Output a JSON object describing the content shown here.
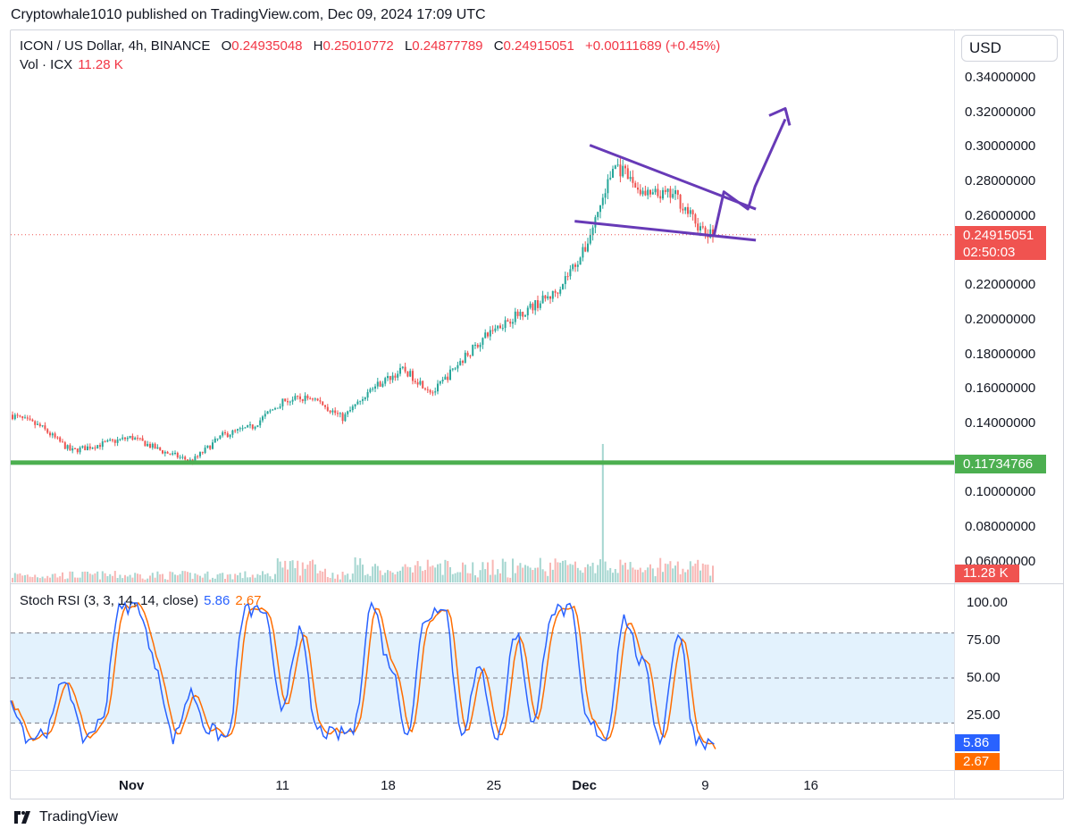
{
  "header": {
    "publisher_line": "Cryptowhale1010 published on TradingView.com, Dec 09, 2024 17:09 UTC"
  },
  "legend": {
    "symbol": "ICON / US Dollar, 4h, BINANCE",
    "o_label": "O",
    "o_value": "0.24935048",
    "h_label": "H",
    "h_value": "0.25010772",
    "l_label": "L",
    "l_value": "0.24877789",
    "c_label": "C",
    "c_value": "0.24915051",
    "change": "+0.00111689 (+0.45%)",
    "vol_label": "Vol · ICX",
    "vol_value": "11.28 K",
    "stoch_label": "Stoch RSI (3, 3, 14, 14, close)",
    "stoch_k": "5.86",
    "stoch_d": "2.67"
  },
  "currency": "USD",
  "price_axis": [
    "0.34000000",
    "0.32000000",
    "0.30000000",
    "0.28000000",
    "0.26000000",
    "0.22000000",
    "0.20000000",
    "0.18000000",
    "0.16000000",
    "0.14000000",
    "0.10000000",
    "0.08000000",
    "0.06000000"
  ],
  "rsi_axis": [
    "100.00",
    "75.00",
    "50.00",
    "25.00"
  ],
  "time_axis": [
    "Nov",
    "11",
    "18",
    "25",
    "Dec",
    "9",
    "16"
  ],
  "badges": {
    "price": "0.24915051",
    "countdown": "02:50:03",
    "support": "0.11734766",
    "volume": "11.28 K",
    "k": "5.86",
    "d": "2.67"
  },
  "colors": {
    "up": "#26a69a",
    "down": "#ef5350",
    "support_line": "#4caf50",
    "drawing": "#673ab7",
    "stoch_k": "#2962ff",
    "stoch_d": "#ff6d00",
    "band_fill": "#e3f2fd"
  },
  "footer": {
    "brand": "TradingView",
    "logo_icon": "tradingview-logo-icon"
  },
  "chart_data": {
    "type": "candlestick",
    "symbol": "ICON / US Dollar",
    "interval": "4h",
    "exchange": "BINANCE",
    "price_range": [
      0.05,
      0.35
    ],
    "last_price": 0.24915051,
    "support_level": 0.11734766,
    "price_path": [
      [
        "2024-10-24",
        0.145
      ],
      [
        "2024-10-26",
        0.138
      ],
      [
        "2024-10-28",
        0.124
      ],
      [
        "2024-10-30",
        0.128
      ],
      [
        "2024-11-01",
        0.132
      ],
      [
        "2024-11-03",
        0.124
      ],
      [
        "2024-11-05",
        0.118
      ],
      [
        "2024-11-07",
        0.133
      ],
      [
        "2024-11-09",
        0.138
      ],
      [
        "2024-11-11",
        0.153
      ],
      [
        "2024-11-13",
        0.155
      ],
      [
        "2024-11-15",
        0.143
      ],
      [
        "2024-11-17",
        0.161
      ],
      [
        "2024-11-19",
        0.171
      ],
      [
        "2024-11-21",
        0.158
      ],
      [
        "2024-11-23",
        0.178
      ],
      [
        "2024-11-25",
        0.195
      ],
      [
        "2024-11-27",
        0.205
      ],
      [
        "2024-11-29",
        0.215
      ],
      [
        "2024-12-01",
        0.24
      ],
      [
        "2024-12-03",
        0.29
      ],
      [
        "2024-12-05",
        0.272
      ],
      [
        "2024-12-07",
        0.272
      ],
      [
        "2024-12-09",
        0.249
      ]
    ],
    "volume_spike_date": "2024-12-02",
    "stoch_rsi": {
      "k_last": 5.86,
      "d_last": 2.67,
      "bands": [
        20,
        50,
        80
      ],
      "range": [
        0,
        100
      ],
      "k": [
        35,
        10,
        15,
        50,
        10,
        20,
        95,
        100,
        60,
        10,
        40,
        15,
        10,
        95,
        95,
        30,
        80,
        15,
        12,
        15,
        100,
        60,
        15,
        90,
        100,
        15,
        55,
        10,
        80,
        20,
        95,
        95,
        20,
        10,
        90,
        60,
        10,
        80,
        10,
        5
      ]
    },
    "drawings": [
      {
        "type": "trendline",
        "from": [
          "2024-12-01",
          0.301
        ],
        "to": [
          "2024-12-12",
          0.264
        ]
      },
      {
        "type": "trendline",
        "from": [
          "2024-11-30",
          0.257
        ],
        "to": [
          "2024-12-12",
          0.246
        ]
      },
      {
        "type": "arrow",
        "path": [
          [
            "2024-12-09",
            0.249
          ],
          [
            "2024-12-10",
            0.274
          ],
          [
            "2024-12-11",
            0.264
          ],
          [
            "2024-12-11",
            0.277
          ],
          [
            "2024-12-13",
            0.316
          ]
        ]
      }
    ]
  }
}
